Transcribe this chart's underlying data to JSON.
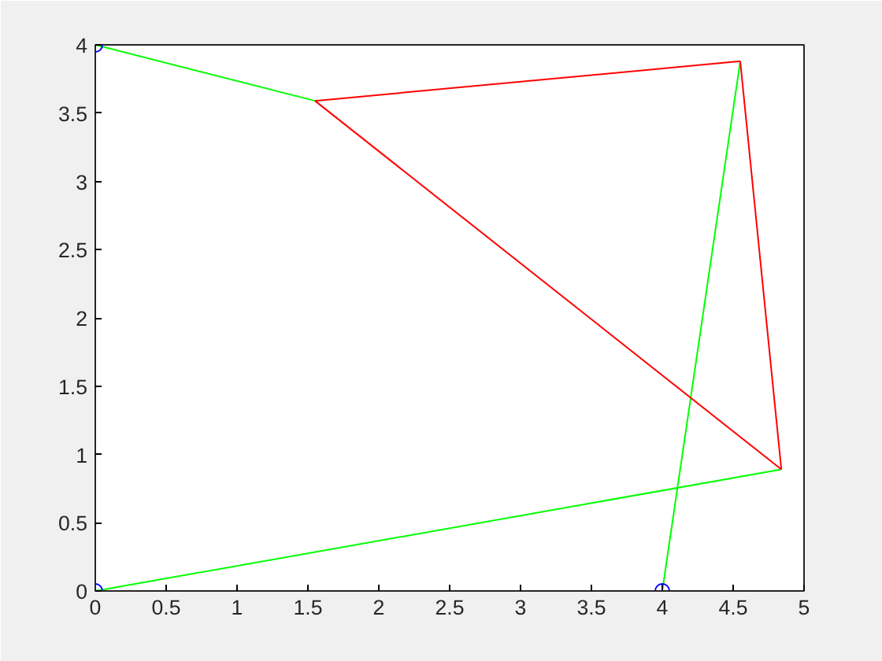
{
  "chart_data": {
    "type": "line",
    "xlim": [
      0,
      5
    ],
    "ylim": [
      0,
      4
    ],
    "xticks": [
      0,
      0.5,
      1,
      1.5,
      2,
      2.5,
      3,
      3.5,
      4,
      4.5,
      5
    ],
    "yticks": [
      0,
      0.5,
      1,
      1.5,
      2,
      2.5,
      3,
      3.5,
      4
    ],
    "grid": false,
    "series": [
      {
        "color": "#00ff00",
        "x": [
          0,
          1.55
        ],
        "values": [
          4,
          3.59
        ]
      },
      {
        "color": "#00ff00",
        "x": [
          0,
          4.84
        ],
        "values": [
          0,
          0.89
        ]
      },
      {
        "color": "#00ff00",
        "x": [
          4,
          4.55
        ],
        "values": [
          0,
          3.88
        ]
      },
      {
        "color": "#ff0000",
        "x": [
          1.55,
          4.55
        ],
        "values": [
          3.59,
          3.88
        ]
      },
      {
        "color": "#ff0000",
        "x": [
          4.55,
          4.84
        ],
        "values": [
          3.88,
          0.89
        ]
      },
      {
        "color": "#ff0000",
        "x": [
          1.55,
          4.84
        ],
        "values": [
          3.59,
          0.89
        ]
      },
      {
        "type": "scatter",
        "color": "#0000ff",
        "marker": "circle",
        "x": [
          0,
          0,
          4
        ],
        "values": [
          4,
          0,
          0
        ]
      }
    ]
  }
}
